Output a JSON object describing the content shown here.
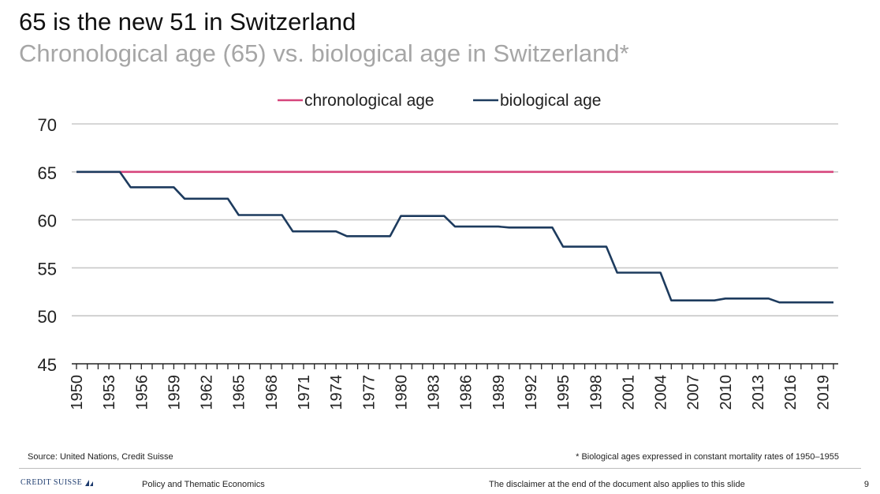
{
  "title": "65 is the new 51 in Switzerland",
  "subtitle": "Chronological age (65) vs. biological age in Switzerland*",
  "chart_data": {
    "type": "line",
    "x": [
      1950,
      1951,
      1952,
      1953,
      1954,
      1955,
      1956,
      1957,
      1958,
      1959,
      1960,
      1961,
      1962,
      1963,
      1964,
      1965,
      1966,
      1967,
      1968,
      1969,
      1970,
      1971,
      1972,
      1973,
      1974,
      1975,
      1976,
      1977,
      1978,
      1979,
      1980,
      1981,
      1982,
      1983,
      1984,
      1985,
      1986,
      1987,
      1988,
      1989,
      1990,
      1991,
      1992,
      1993,
      1994,
      1995,
      1996,
      1997,
      1998,
      1999,
      2000,
      2001,
      2002,
      2003,
      2004,
      2005,
      2006,
      2007,
      2008,
      2009,
      2010,
      2011,
      2012,
      2013,
      2014,
      2015,
      2016,
      2017,
      2018,
      2019,
      2020
    ],
    "series": [
      {
        "name": "chronological age",
        "color": "#d6457c",
        "values": [
          65,
          65,
          65,
          65,
          65,
          65,
          65,
          65,
          65,
          65,
          65,
          65,
          65,
          65,
          65,
          65,
          65,
          65,
          65,
          65,
          65,
          65,
          65,
          65,
          65,
          65,
          65,
          65,
          65,
          65,
          65,
          65,
          65,
          65,
          65,
          65,
          65,
          65,
          65,
          65,
          65,
          65,
          65,
          65,
          65,
          65,
          65,
          65,
          65,
          65,
          65,
          65,
          65,
          65,
          65,
          65,
          65,
          65,
          65,
          65,
          65,
          65,
          65,
          65,
          65,
          65,
          65,
          65,
          65,
          65,
          65
        ]
      },
      {
        "name": "biological age",
        "color": "#1d3b5e",
        "values": [
          65,
          65,
          65,
          65,
          65,
          63.4,
          63.4,
          63.4,
          63.4,
          63.4,
          62.2,
          62.2,
          62.2,
          62.2,
          62.2,
          60.5,
          60.5,
          60.5,
          60.5,
          60.5,
          58.8,
          58.8,
          58.8,
          58.8,
          58.8,
          58.3,
          58.3,
          58.3,
          58.3,
          58.3,
          60.4,
          60.4,
          60.4,
          60.4,
          60.4,
          59.3,
          59.3,
          59.3,
          59.3,
          59.3,
          59.2,
          59.2,
          59.2,
          59.2,
          59.2,
          57.2,
          57.2,
          57.2,
          57.2,
          57.2,
          54.5,
          54.5,
          54.5,
          54.5,
          54.5,
          51.6,
          51.6,
          51.6,
          51.6,
          51.6,
          51.8,
          51.8,
          51.8,
          51.8,
          51.8,
          51.4,
          51.4,
          51.4,
          51.4,
          51.4,
          51.4
        ]
      }
    ],
    "x_tick_labels": [
      "1950",
      "1953",
      "1956",
      "1959",
      "1962",
      "1965",
      "1968",
      "1971",
      "1974",
      "1977",
      "1980",
      "1983",
      "1986",
      "1989",
      "1992",
      "1995",
      "1998",
      "2001",
      "2004",
      "2007",
      "2010",
      "2013",
      "2016",
      "2019"
    ],
    "y_tick_labels": [
      "70",
      "65",
      "60",
      "55",
      "50",
      "45"
    ],
    "y_ticks": [
      70,
      65,
      60,
      55,
      50,
      45
    ],
    "ylim": [
      45,
      70
    ],
    "xlim": [
      1950,
      2020
    ],
    "grid": true,
    "legend_position": "top"
  },
  "source": "Source: United Nations, Credit Suisse",
  "footnote": "* Biological ages expressed in constant mortality rates of 1950–1955",
  "brand": "CREDIT SUISSE",
  "footer_left": "Policy and Thematic Economics",
  "footer_right": "The disclaimer at the end of the document also applies to this slide",
  "page_number": "9"
}
